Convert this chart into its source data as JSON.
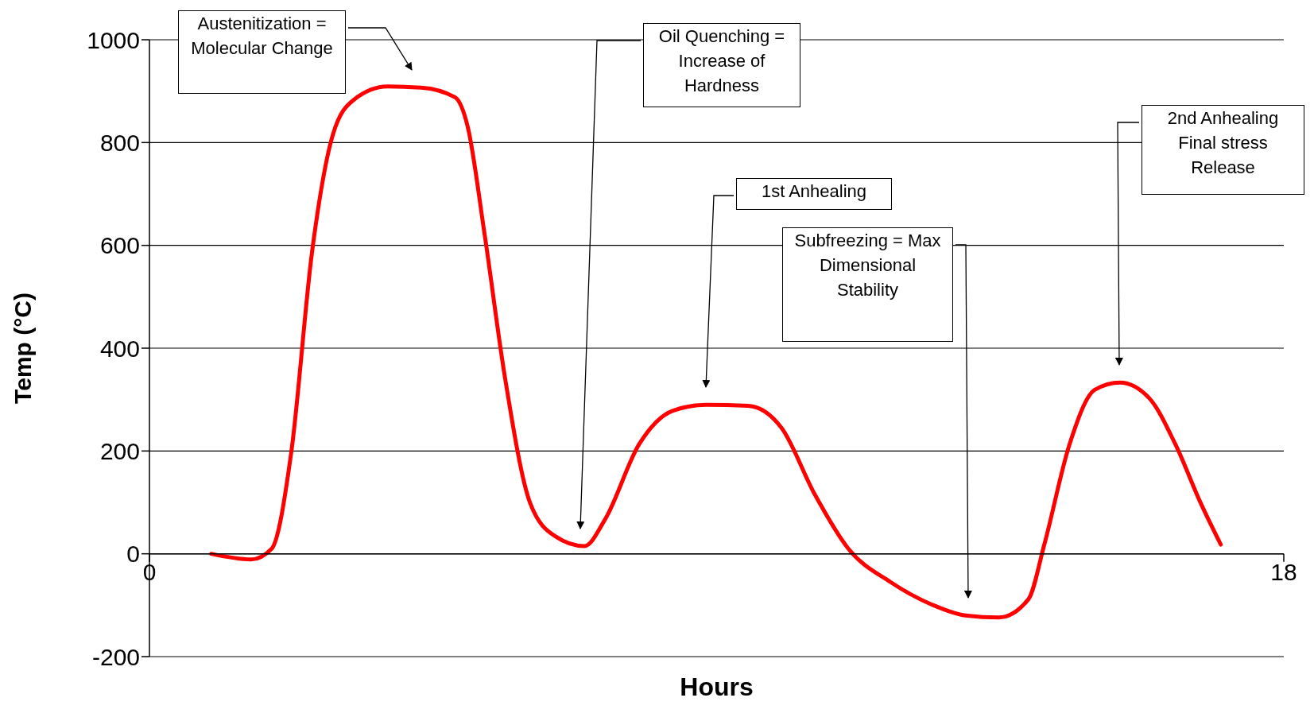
{
  "chart_data": {
    "type": "line",
    "xlabel": "Hours",
    "ylabel": "Temp (°C)",
    "x": [
      0.98,
      1.61,
      1.94,
      2.25,
      2.58,
      2.91,
      3.24,
      3.78,
      4.31,
      4.85,
      5.05,
      5.32,
      5.64,
      6.04,
      6.44,
      6.9,
      7.23,
      7.77,
      8.3,
      8.83,
      9.5,
      10.03,
      10.56,
      11.09,
      11.76,
      12.42,
      12.95,
      13.48,
      13.95,
      14.2,
      14.6,
      15.0,
      15.4,
      15.87,
      16.28,
      16.68,
      17.0
    ],
    "series": [
      {
        "color": "#ff0000",
        "values": [
          0,
          -11,
          10,
          197,
          587,
          815,
          883,
          909,
          907,
          888,
          831,
          620,
          344,
          99,
          34,
          15,
          67,
          213,
          278,
          290,
          288,
          245,
          115,
          10,
          -55,
          -99,
          -120,
          -124,
          -88,
          18,
          213,
          319,
          333,
          302,
          213,
          99,
          18
        ]
      }
    ],
    "xlim": [
      0,
      18
    ],
    "xticks": [
      0,
      18
    ],
    "ylim": [
      -200,
      1000
    ],
    "yticks": [
      -200,
      0,
      200,
      400,
      600,
      800,
      1000
    ],
    "grid": "y",
    "legend": false,
    "marker": "none",
    "line_style": "solid",
    "annotations": [
      "Austenitization = Molecular Change",
      "Oil Quenching = Increase of Hardness",
      "1st Anhealing",
      "Subfreezing = Max Dimensional Stability",
      "2nd Anhealing Final stress Release"
    ]
  }
}
